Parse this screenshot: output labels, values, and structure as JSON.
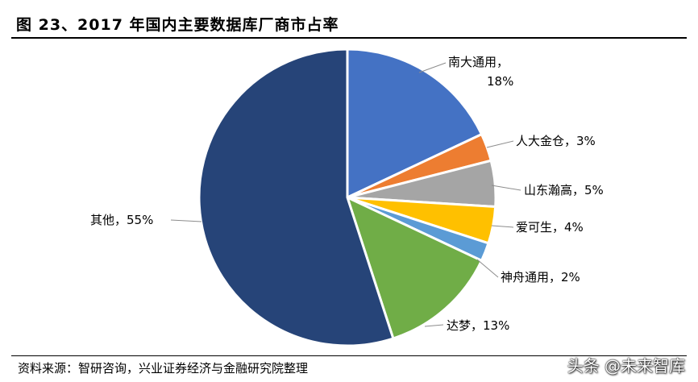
{
  "title": "图 23、2017 年国内主要数据库厂商市占率",
  "source": "资料来源：智研咨询，兴业证券经济与金融研究院整理",
  "watermark": "头条 @未来智库",
  "chart_data": {
    "type": "pie",
    "title": "图 23、2017 年国内主要数据库厂商市占率",
    "slices": [
      {
        "name": "南大通用",
        "value": 18,
        "label": "南大通用，",
        "value_label": "18%",
        "color": "#4472c4"
      },
      {
        "name": "人大金仓",
        "value": 3,
        "label": "人大金仓，3%",
        "color": "#ed7d31"
      },
      {
        "name": "山东瀚高",
        "value": 5,
        "label": "山东瀚高，5%",
        "color": "#a5a5a5"
      },
      {
        "name": "爱可生",
        "value": 4,
        "label": "爱可生，4%",
        "color": "#ffc000"
      },
      {
        "name": "神舟通用",
        "value": 2,
        "label": "神舟通用，2%",
        "color": "#5b9bd5"
      },
      {
        "name": "达梦",
        "value": 13,
        "label": "达梦，13%",
        "color": "#70ad47"
      },
      {
        "name": "其他",
        "value": 55,
        "label": "其他，55%",
        "color": "#264478"
      }
    ]
  }
}
